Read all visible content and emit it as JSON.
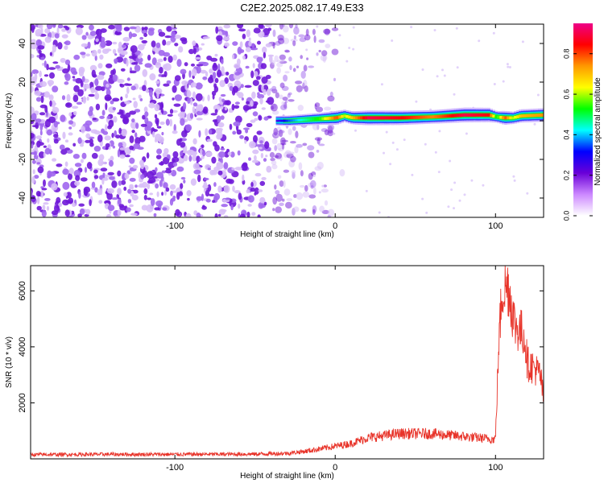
{
  "title": "C2E2.2025.082.17.49.E33",
  "chart_data": [
    {
      "type": "heatmap",
      "xlabel": "Height of straight line (km)",
      "ylabel": "Frequency (Hz)",
      "xlim": [
        -190,
        130
      ],
      "ylim": [
        -50,
        50
      ],
      "xticks": [
        -100,
        0,
        100
      ],
      "yticks": [
        -40,
        -20,
        0,
        20,
        40
      ],
      "colorbar": {
        "label": "Normalized spectral amplitude",
        "range": [
          0,
          0.95
        ],
        "ticks": [
          0.0,
          0.2,
          0.4,
          0.6,
          0.8
        ],
        "colors": [
          "#ffffff",
          "#cc88ff",
          "#6a00d8",
          "#0000ff",
          "#00ffff",
          "#00ff00",
          "#ffff00",
          "#ff9900",
          "#ff0000",
          "#ee0088"
        ]
      },
      "noise_region": {
        "x": [
          -190,
          -20
        ],
        "amplitude": 0.15
      },
      "signal_line": {
        "x": [
          -37,
          -30,
          -20,
          -10,
          0,
          5,
          10,
          20,
          40,
          60,
          80,
          95,
          100,
          105,
          110,
          115,
          130
        ],
        "y": [
          0,
          0,
          0.5,
          1,
          1.5,
          2.5,
          1.5,
          1.5,
          1.5,
          2,
          3,
          3,
          2,
          1.5,
          1.5,
          2.5,
          3
        ],
        "amplitude": [
          0.25,
          0.35,
          0.45,
          0.55,
          0.8,
          0.6,
          0.7,
          0.9,
          0.85,
          0.75,
          0.9,
          0.85,
          0.5,
          0.8,
          0.6,
          0.7,
          0.75
        ]
      }
    },
    {
      "type": "line",
      "xlabel": "Height of straight line (km)",
      "ylabel": "SNR (10 * v/v)",
      "xlim": [
        -190,
        130
      ],
      "ylim": [
        0,
        6900
      ],
      "xticks": [
        -100,
        0,
        100
      ],
      "yticks": [
        2000,
        4000,
        6000
      ],
      "color": "#e8342a",
      "series": [
        {
          "x": [
            -190,
            -150,
            -100,
            -50,
            -30,
            -20,
            -10,
            0,
            10,
            20,
            40,
            60,
            80,
            99,
            100,
            102,
            104,
            106,
            108,
            110,
            112,
            115,
            118,
            120,
            123,
            125,
            128,
            130
          ],
          "y": [
            150,
            160,
            160,
            170,
            200,
            260,
            350,
            450,
            550,
            750,
            900,
            900,
            800,
            700,
            750,
            4000,
            6000,
            6100,
            6200,
            5500,
            4800,
            4600,
            4400,
            3400,
            3300,
            3200,
            3000,
            2100
          ]
        }
      ]
    }
  ]
}
